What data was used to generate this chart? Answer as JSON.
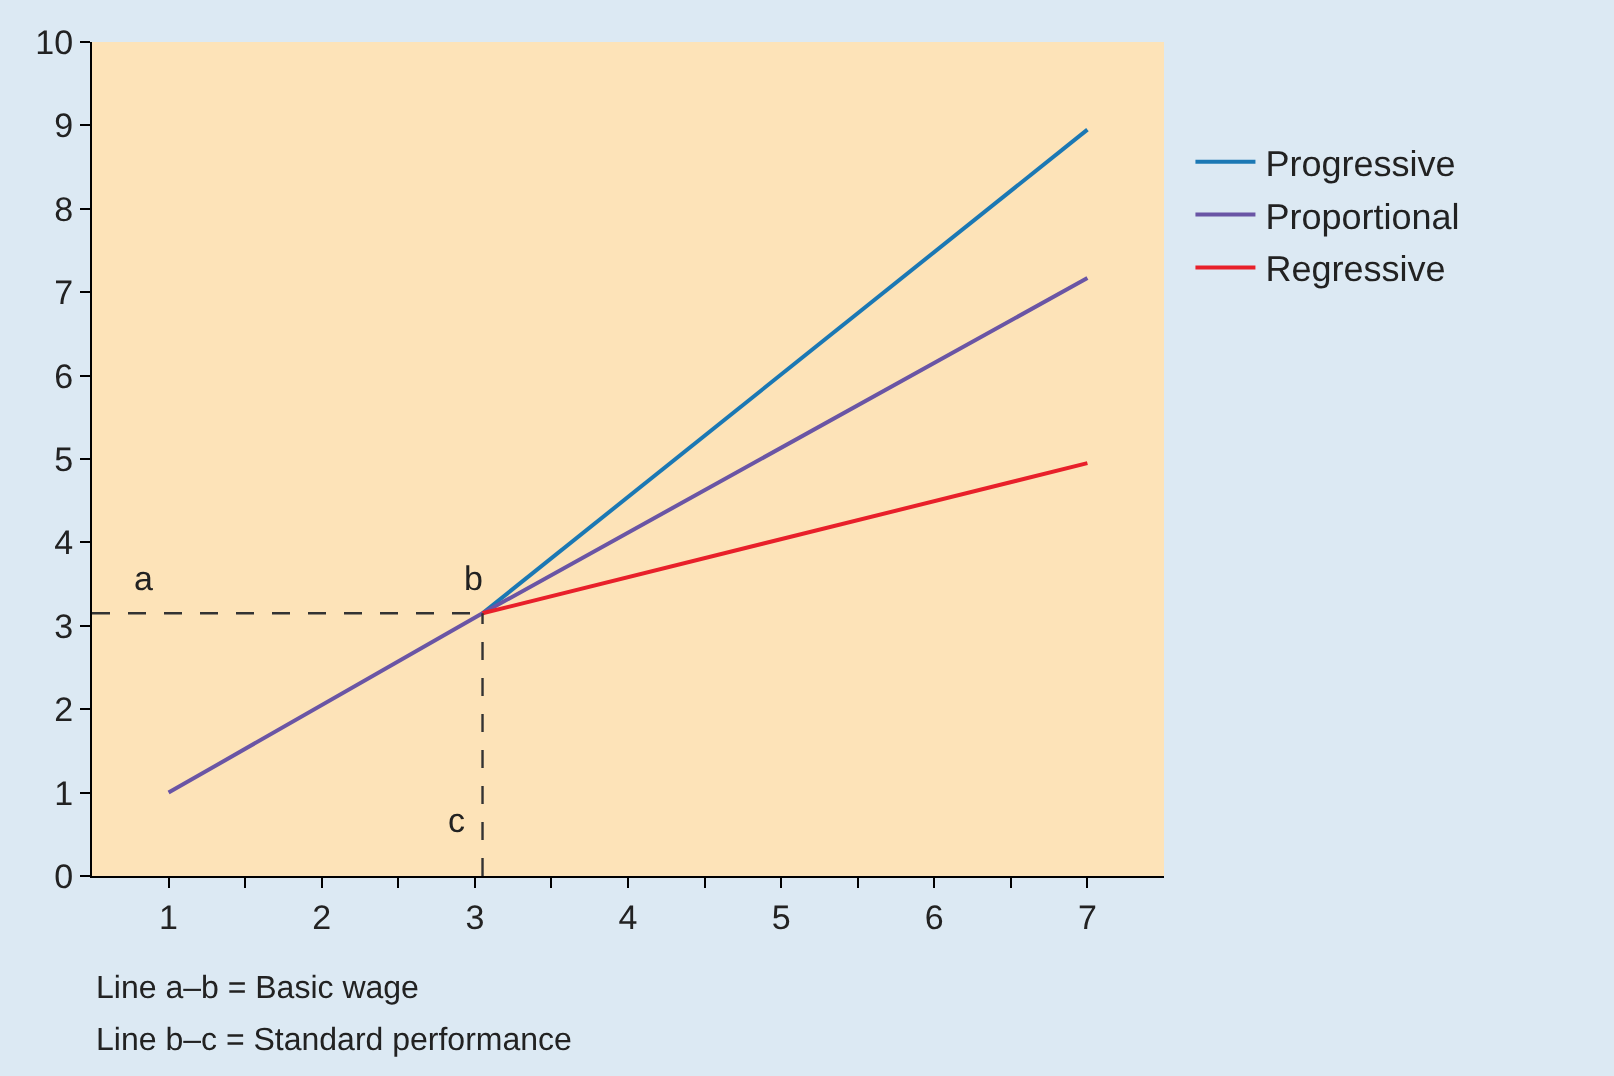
{
  "chart_data": {
    "type": "line",
    "xlim": [
      0.5,
      7.5
    ],
    "xticks": [
      1,
      {
        "value": 1.5,
        "label": null
      },
      2,
      {
        "value": 2.5,
        "label": null
      },
      3,
      {
        "value": 3.5,
        "label": null
      },
      4,
      {
        "value": 4.5,
        "label": null
      },
      5,
      {
        "value": 5.5,
        "label": null
      },
      6,
      {
        "value": 6.5,
        "label": null
      },
      7
    ],
    "ylim": [
      0,
      10
    ],
    "yticks": [
      0,
      1,
      2,
      3,
      4,
      5,
      6,
      7,
      8,
      9,
      10
    ],
    "grid": false,
    "legend": "right",
    "series": [
      {
        "name": "Progressive",
        "color": "#1b78b4",
        "x": [
          3.05,
          7
        ],
        "values": [
          3.15,
          8.95
        ]
      },
      {
        "name": "Proportional",
        "color": "#6a55a5",
        "x": [
          1,
          3.05,
          7
        ],
        "values": [
          1,
          3.15,
          7.17
        ]
      },
      {
        "name": "Regressive",
        "color": "#e8202a",
        "x": [
          3.05,
          7
        ],
        "values": [
          3.15,
          4.95
        ]
      },
      {
        "color": "#333333",
        "x": [
          0.5,
          3.05
        ],
        "values": [
          3.15,
          3.15
        ],
        "line_style": "dashed"
      },
      {
        "color": "#333333",
        "x": [
          3.05,
          3.05
        ],
        "values": [
          0,
          3.15
        ],
        "line_style": "dashed"
      }
    ],
    "annotations": [
      "a",
      "b",
      "c",
      "Line a–b = Basic wage",
      "Line b–c = Standard performance"
    ]
  }
}
